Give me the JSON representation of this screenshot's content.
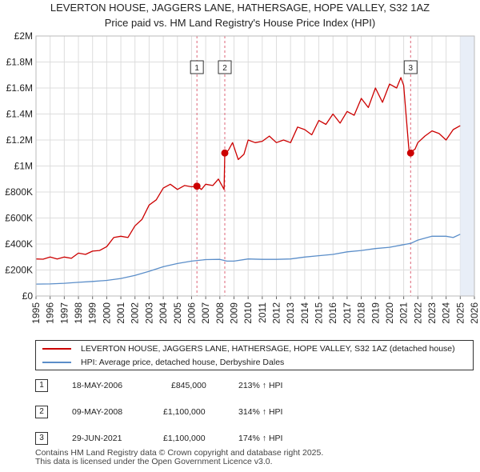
{
  "chart_data": {
    "type": "line",
    "title": "LEVERTON HOUSE, JAGGERS LANE, HATHERSAGE, HOPE VALLEY, S32 1AZ",
    "subtitle": "Price paid vs. HM Land Registry's House Price Index (HPI)",
    "x_ticks": [
      "1995",
      "1996",
      "1997",
      "1998",
      "1999",
      "2000",
      "2001",
      "2002",
      "2003",
      "2004",
      "2005",
      "2006",
      "2007",
      "2008",
      "2009",
      "2010",
      "2011",
      "2012",
      "2013",
      "2014",
      "2015",
      "2016",
      "2017",
      "2018",
      "2019",
      "2020",
      "2021",
      "2022",
      "2023",
      "2024",
      "2025",
      "2026"
    ],
    "y_ticks": [
      "£0",
      "£200K",
      "£400K",
      "£600K",
      "£800K",
      "£1M",
      "£1.2M",
      "£1.4M",
      "£1.6M",
      "£1.8M",
      "£2M"
    ],
    "xlim": [
      1995,
      2026
    ],
    "ylim": [
      0,
      2000000
    ],
    "grid": true,
    "series": [
      {
        "name": "LEVERTON HOUSE, JAGGERS LANE, HATHERSAGE, HOPE VALLEY, S32 1AZ (detached house)",
        "color": "#cc0000",
        "x": [
          1995.0,
          1995.5,
          1996.0,
          1996.5,
          1997.0,
          1997.5,
          1998.0,
          1998.5,
          1999.0,
          1999.5,
          2000.0,
          2000.5,
          2001.0,
          2001.5,
          2002.0,
          2002.5,
          2003.0,
          2003.5,
          2004.0,
          2004.5,
          2005.0,
          2005.5,
          2006.0,
          2006.38,
          2006.7,
          2007.0,
          2007.5,
          2007.9,
          2008.3,
          2008.35,
          2008.6,
          2008.9,
          2009.3,
          2009.7,
          2010.0,
          2010.5,
          2011.0,
          2011.5,
          2012.0,
          2012.5,
          2013.0,
          2013.5,
          2014.0,
          2014.5,
          2015.0,
          2015.5,
          2016.0,
          2016.5,
          2017.0,
          2017.5,
          2018.0,
          2018.5,
          2019.0,
          2019.5,
          2020.0,
          2020.5,
          2020.8,
          2021.0,
          2021.35,
          2021.4,
          2021.8,
          2022.0,
          2022.5,
          2023.0,
          2023.5,
          2024.0,
          2024.5,
          2025.0
        ],
        "y": [
          285000,
          283000,
          300000,
          285000,
          300000,
          290000,
          330000,
          320000,
          345000,
          350000,
          380000,
          450000,
          460000,
          450000,
          540000,
          590000,
          700000,
          740000,
          830000,
          860000,
          820000,
          850000,
          840000,
          845000,
          820000,
          860000,
          850000,
          900000,
          820000,
          1100000,
          1120000,
          1180000,
          1050000,
          1090000,
          1200000,
          1180000,
          1190000,
          1230000,
          1180000,
          1200000,
          1180000,
          1300000,
          1280000,
          1240000,
          1350000,
          1320000,
          1400000,
          1330000,
          1420000,
          1390000,
          1520000,
          1450000,
          1600000,
          1490000,
          1630000,
          1600000,
          1680000,
          1620000,
          1150000,
          1100000,
          1130000,
          1180000,
          1230000,
          1270000,
          1250000,
          1200000,
          1280000,
          1310000
        ]
      },
      {
        "name": "HPI: Average price, detached house, Derbyshire Dales",
        "color": "#5b8ec9",
        "x": [
          1995.0,
          1996.0,
          1997.0,
          1998.0,
          1999.0,
          2000.0,
          2001.0,
          2002.0,
          2003.0,
          2004.0,
          2005.0,
          2006.0,
          2007.0,
          2008.0,
          2008.5,
          2009.0,
          2010.0,
          2011.0,
          2012.0,
          2013.0,
          2014.0,
          2015.0,
          2016.0,
          2017.0,
          2018.0,
          2019.0,
          2020.0,
          2021.0,
          2021.5,
          2022.0,
          2023.0,
          2024.0,
          2024.5,
          2025.0
        ],
        "y": [
          92000,
          93000,
          98000,
          105000,
          112000,
          120000,
          135000,
          158000,
          190000,
          225000,
          250000,
          268000,
          280000,
          282000,
          268000,
          268000,
          285000,
          282000,
          282000,
          285000,
          300000,
          310000,
          320000,
          340000,
          350000,
          365000,
          375000,
          395000,
          405000,
          430000,
          460000,
          460000,
          450000,
          475000
        ]
      }
    ],
    "sales": [
      {
        "label": "1",
        "date": "18-MAY-2006",
        "price": "£845,000",
        "hpi_delta": "213% ↑ HPI",
        "x": 2006.38,
        "y": 845000
      },
      {
        "label": "2",
        "date": "09-MAY-2008",
        "price": "£1,100,000",
        "hpi_delta": "314% ↑ HPI",
        "x": 2008.35,
        "y": 1100000
      },
      {
        "label": "3",
        "date": "29-JUN-2021",
        "price": "£1,100,000",
        "hpi_delta": "174% ↑ HPI",
        "x": 2021.49,
        "y": 1100000
      }
    ],
    "highlight_region": {
      "from": 2025.0,
      "to": 2026.0
    }
  },
  "legend": {
    "property_label": "LEVERTON HOUSE, JAGGERS LANE, HATHERSAGE, HOPE VALLEY, S32 1AZ (detached house)",
    "hpi_label": "HPI: Average price, detached house, Derbyshire Dales"
  },
  "footer": {
    "line1": "Contains HM Land Registry data © Crown copyright and database right 2025.",
    "line2": "This data is licensed under the Open Government Licence v3.0."
  }
}
